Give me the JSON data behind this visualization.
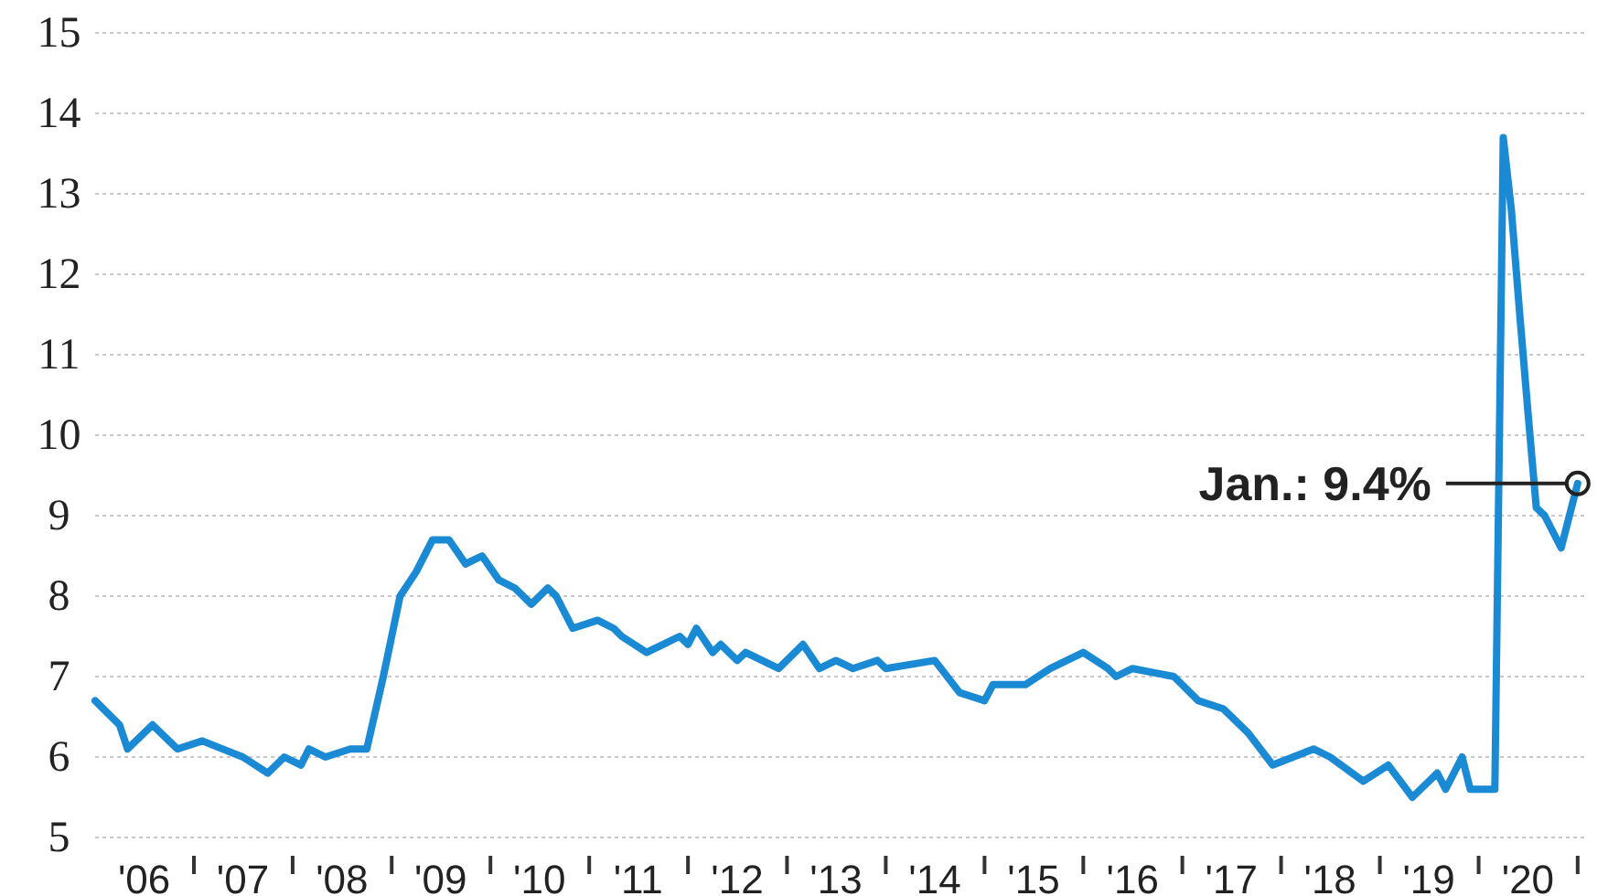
{
  "chart_data": {
    "type": "line",
    "x": [
      "2006-01",
      "2006-04",
      "2006-05",
      "2006-08",
      "2006-11",
      "2007-02",
      "2007-07",
      "2007-10",
      "2007-12",
      "2008-02",
      "2008-03",
      "2008-05",
      "2008-08",
      "2008-10",
      "2008-12",
      "2009-02",
      "2009-04",
      "2009-06",
      "2009-08",
      "2009-10",
      "2009-12",
      "2010-02",
      "2010-04",
      "2010-06",
      "2010-08",
      "2010-09",
      "2010-11",
      "2011-02",
      "2011-04",
      "2011-05",
      "2011-08",
      "2011-10",
      "2011-12",
      "2012-01",
      "2012-02",
      "2012-04",
      "2012-05",
      "2012-07",
      "2012-08",
      "2012-10",
      "2012-12",
      "2013-03",
      "2013-05",
      "2013-07",
      "2013-09",
      "2013-12",
      "2014-01",
      "2014-07",
      "2014-10",
      "2015-01",
      "2015-02",
      "2015-06",
      "2015-09",
      "2016-01",
      "2016-04",
      "2016-05",
      "2016-07",
      "2016-12",
      "2017-03",
      "2017-06",
      "2017-09",
      "2017-12",
      "2018-05",
      "2018-07",
      "2018-11",
      "2019-02",
      "2019-05",
      "2019-08",
      "2019-09",
      "2019-11",
      "2019-12",
      "2020-01",
      "2020-03",
      "2020-04",
      "2020-05",
      "2020-06",
      "2020-07",
      "2020-08",
      "2020-09",
      "2020-11",
      "2021-01"
    ],
    "series": [
      {
        "color": "#1a8ad4",
        "values": [
          6.7,
          6.4,
          6.1,
          6.4,
          6.1,
          6.2,
          6.0,
          5.8,
          6.0,
          5.9,
          6.1,
          6.0,
          6.1,
          6.1,
          7.0,
          8.0,
          8.3,
          8.7,
          8.7,
          8.4,
          8.5,
          8.2,
          8.1,
          7.9,
          8.1,
          8.0,
          7.6,
          7.7,
          7.6,
          7.5,
          7.3,
          7.4,
          7.5,
          7.4,
          7.6,
          7.3,
          7.4,
          7.2,
          7.3,
          7.2,
          7.1,
          7.4,
          7.1,
          7.2,
          7.1,
          7.2,
          7.1,
          7.2,
          6.8,
          6.7,
          6.9,
          6.9,
          7.1,
          7.3,
          7.1,
          7.0,
          7.1,
          7.0,
          6.7,
          6.6,
          6.3,
          5.9,
          6.1,
          6.0,
          5.7,
          5.9,
          5.5,
          5.8,
          5.6,
          6.0,
          5.6,
          5.6,
          5.6,
          13.7,
          12.8,
          11.5,
          10.3,
          9.1,
          9.0,
          8.6,
          9.4
        ]
      }
    ],
    "xlim": [
      "2006-01",
      "2021-02"
    ],
    "xticks": [
      {
        "value": "2006-07",
        "label": "'06"
      },
      {
        "value": "2007-01",
        "label": null
      },
      {
        "value": "2007-07",
        "label": "'07"
      },
      {
        "value": "2008-01",
        "label": null
      },
      {
        "value": "2008-07",
        "label": "'08"
      },
      {
        "value": "2009-01",
        "label": null
      },
      {
        "value": "2009-07",
        "label": "'09"
      },
      {
        "value": "2010-01",
        "label": null
      },
      {
        "value": "2010-07",
        "label": "'10"
      },
      {
        "value": "2011-01",
        "label": null
      },
      {
        "value": "2011-07",
        "label": "'11"
      },
      {
        "value": "2012-01",
        "label": null
      },
      {
        "value": "2012-07",
        "label": "'12"
      },
      {
        "value": "2013-01",
        "label": null
      },
      {
        "value": "2013-07",
        "label": "'13"
      },
      {
        "value": "2014-01",
        "label": null
      },
      {
        "value": "2014-07",
        "label": "'14"
      },
      {
        "value": "2015-01",
        "label": null
      },
      {
        "value": "2015-07",
        "label": "'15"
      },
      {
        "value": "2016-01",
        "label": null
      },
      {
        "value": "2016-07",
        "label": "'16"
      },
      {
        "value": "2017-01",
        "label": null
      },
      {
        "value": "2017-07",
        "label": "'17"
      },
      {
        "value": "2018-01",
        "label": null
      },
      {
        "value": "2018-07",
        "label": "'18"
      },
      {
        "value": "2019-01",
        "label": null
      },
      {
        "value": "2019-07",
        "label": "'19"
      },
      {
        "value": "2020-01",
        "label": null
      },
      {
        "value": "2020-07",
        "label": "'20"
      },
      {
        "value": "2021-01",
        "label": null
      }
    ],
    "ylim": [
      5,
      15
    ],
    "yticks": [
      5,
      6,
      7,
      8,
      9,
      10,
      11,
      12,
      13,
      14,
      15
    ],
    "grid": "y",
    "annotations": [
      {
        "text": "Jan.: 9.4%",
        "x": "2021-01",
        "y": 9.4
      }
    ]
  }
}
